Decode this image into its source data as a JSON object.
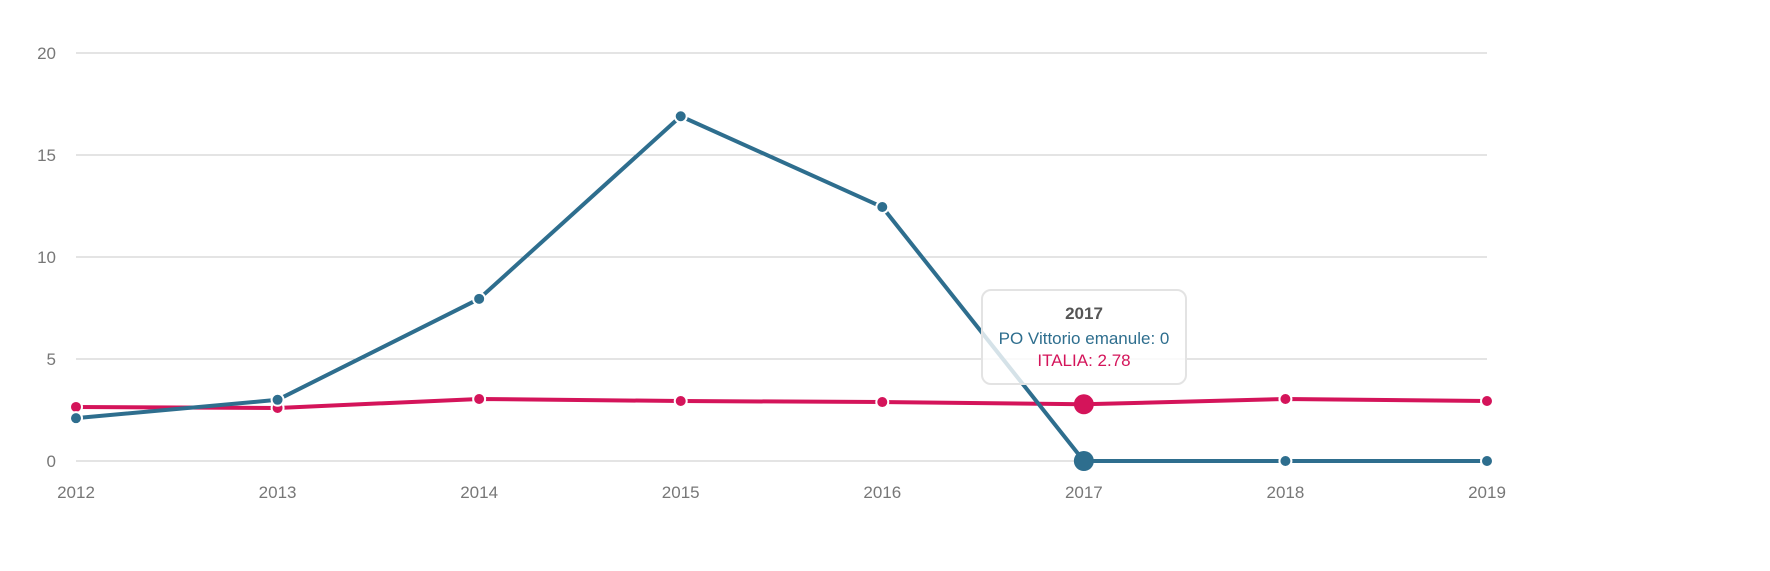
{
  "chart_data": {
    "type": "line",
    "x": [
      "2012",
      "2013",
      "2014",
      "2015",
      "2016",
      "2017",
      "2018",
      "2019"
    ],
    "ylim": [
      0,
      20
    ],
    "yticks": [
      "0",
      "5",
      "10",
      "15",
      "20"
    ],
    "grid": true,
    "series": [
      {
        "name": "PO Vittorio emanule",
        "color": "#2e6e8e",
        "values": [
          2.1,
          3.0,
          7.95,
          16.9,
          12.45,
          0,
          0,
          0
        ]
      },
      {
        "name": "ITALIA",
        "color": "#d4145a",
        "values": [
          2.65,
          2.6,
          3.04,
          2.94,
          2.89,
          2.78,
          3.04,
          2.94
        ]
      }
    ],
    "tooltip": {
      "title": "2017",
      "line1": "PO Vittorio emanule: 0",
      "line2": "ITALIA: 2.78",
      "index": 5
    }
  }
}
